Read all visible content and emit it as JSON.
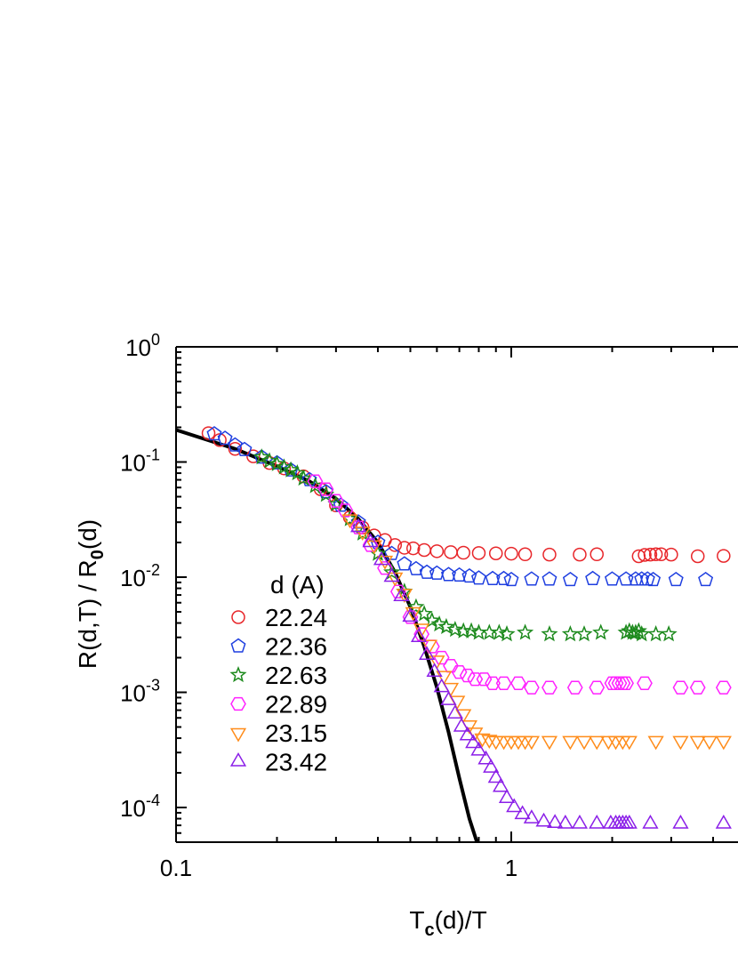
{
  "chart_data": {
    "type": "scatter",
    "x_scale": "log",
    "y_scale": "log",
    "xlim": [
      0.1,
      4.4
    ],
    "ylim": [
      5e-05,
      1
    ],
    "xlabel": {
      "base": "T",
      "sub": "c",
      "rest": "(d)/T"
    },
    "ylabel": {
      "part1": "R(d,T) / R",
      "sub": "0",
      "part2": "(d)"
    },
    "x_ticks": [
      {
        "value": 0.1,
        "label": "0.1"
      },
      {
        "value": 1,
        "label": "1"
      }
    ],
    "y_ticks": [
      {
        "value": 1,
        "base": "10",
        "exp": "0"
      },
      {
        "value": 0.1,
        "base": "10",
        "exp": "-1"
      },
      {
        "value": 0.01,
        "base": "10",
        "exp": "-2"
      },
      {
        "value": 0.001,
        "base": "10",
        "exp": "-3"
      },
      {
        "value": 0.0001,
        "base": "10",
        "exp": "-4"
      }
    ],
    "legend": {
      "title": "d (A)",
      "position": "left-center"
    },
    "series": [
      {
        "name": "22.24",
        "marker": "circle",
        "color": "#e8262a",
        "points": [
          [
            0.125,
            0.178
          ],
          [
            0.135,
            0.155
          ],
          [
            0.15,
            0.13
          ],
          [
            0.17,
            0.112
          ],
          [
            0.19,
            0.098
          ],
          [
            0.21,
            0.088
          ],
          [
            0.24,
            0.075
          ],
          [
            0.27,
            0.058
          ],
          [
            0.3,
            0.042
          ],
          [
            0.33,
            0.033
          ],
          [
            0.36,
            0.027
          ],
          [
            0.39,
            0.023
          ],
          [
            0.42,
            0.021
          ],
          [
            0.45,
            0.019
          ],
          [
            0.48,
            0.018
          ],
          [
            0.51,
            0.0178
          ],
          [
            0.55,
            0.0172
          ],
          [
            0.6,
            0.0168
          ],
          [
            0.66,
            0.0165
          ],
          [
            0.72,
            0.0163
          ],
          [
            0.8,
            0.0162
          ],
          [
            0.9,
            0.0161
          ],
          [
            1.0,
            0.016
          ],
          [
            1.1,
            0.0158
          ],
          [
            1.3,
            0.0157
          ],
          [
            1.6,
            0.0157
          ],
          [
            1.8,
            0.0158
          ],
          [
            2.4,
            0.0152
          ],
          [
            2.5,
            0.0156
          ],
          [
            2.6,
            0.0157
          ],
          [
            2.7,
            0.0158
          ],
          [
            2.8,
            0.0158
          ],
          [
            3.0,
            0.0157
          ],
          [
            3.6,
            0.0152
          ],
          [
            4.3,
            0.0153
          ]
        ]
      },
      {
        "name": "22.36",
        "marker": "pentagon",
        "color": "#1f3fe0",
        "points": [
          [
            0.13,
            0.175
          ],
          [
            0.14,
            0.16
          ],
          [
            0.15,
            0.14
          ],
          [
            0.16,
            0.128
          ],
          [
            0.18,
            0.11
          ],
          [
            0.2,
            0.098
          ],
          [
            0.22,
            0.085
          ],
          [
            0.25,
            0.07
          ],
          [
            0.28,
            0.055
          ],
          [
            0.31,
            0.042
          ],
          [
            0.35,
            0.03
          ],
          [
            0.4,
            0.02
          ],
          [
            0.44,
            0.016
          ],
          [
            0.48,
            0.013
          ],
          [
            0.52,
            0.0118
          ],
          [
            0.56,
            0.011
          ],
          [
            0.6,
            0.0108
          ],
          [
            0.65,
            0.0105
          ],
          [
            0.7,
            0.0104
          ],
          [
            0.75,
            0.0102
          ],
          [
            0.8,
            0.0098
          ],
          [
            0.88,
            0.0097
          ],
          [
            0.95,
            0.0097
          ],
          [
            1.0,
            0.0095
          ],
          [
            1.15,
            0.0096
          ],
          [
            1.3,
            0.0096
          ],
          [
            1.5,
            0.0095
          ],
          [
            1.75,
            0.0097
          ],
          [
            2.0,
            0.0096
          ],
          [
            2.2,
            0.0096
          ],
          [
            2.35,
            0.0096
          ],
          [
            2.45,
            0.0096
          ],
          [
            2.55,
            0.0096
          ],
          [
            2.65,
            0.0095
          ],
          [
            3.1,
            0.0095
          ],
          [
            3.8,
            0.0095
          ]
        ]
      },
      {
        "name": "22.63",
        "marker": "star",
        "color": "#1d8a1d",
        "points": [
          [
            0.18,
            0.11
          ],
          [
            0.19,
            0.102
          ],
          [
            0.2,
            0.096
          ],
          [
            0.21,
            0.09
          ],
          [
            0.22,
            0.085
          ],
          [
            0.23,
            0.08
          ],
          [
            0.24,
            0.072
          ],
          [
            0.26,
            0.062
          ],
          [
            0.28,
            0.052
          ],
          [
            0.3,
            0.043
          ],
          [
            0.33,
            0.032
          ],
          [
            0.36,
            0.024
          ],
          [
            0.4,
            0.016
          ],
          [
            0.44,
            0.011
          ],
          [
            0.48,
            0.0075
          ],
          [
            0.52,
            0.0055
          ],
          [
            0.55,
            0.0048
          ],
          [
            0.58,
            0.0042
          ],
          [
            0.61,
            0.0039
          ],
          [
            0.64,
            0.0037
          ],
          [
            0.68,
            0.0035
          ],
          [
            0.72,
            0.0034
          ],
          [
            0.76,
            0.0034
          ],
          [
            0.8,
            0.0033
          ],
          [
            0.86,
            0.0033
          ],
          [
            0.92,
            0.0033
          ],
          [
            0.97,
            0.0032
          ],
          [
            1.1,
            0.0033
          ],
          [
            1.3,
            0.0032
          ],
          [
            1.5,
            0.0032
          ],
          [
            1.65,
            0.0032
          ],
          [
            1.85,
            0.0033
          ],
          [
            2.2,
            0.0033
          ],
          [
            2.25,
            0.0034
          ],
          [
            2.3,
            0.0033
          ],
          [
            2.35,
            0.0033
          ],
          [
            2.4,
            0.0034
          ],
          [
            2.45,
            0.0032
          ],
          [
            2.7,
            0.0032
          ],
          [
            2.95,
            0.0032
          ]
        ]
      },
      {
        "name": "22.89",
        "marker": "hexagon",
        "color": "#ff22ff",
        "points": [
          [
            0.26,
            0.068
          ],
          [
            0.28,
            0.058
          ],
          [
            0.3,
            0.046
          ],
          [
            0.32,
            0.038
          ],
          [
            0.35,
            0.027
          ],
          [
            0.38,
            0.019
          ],
          [
            0.42,
            0.012
          ],
          [
            0.46,
            0.0075
          ],
          [
            0.5,
            0.0045
          ],
          [
            0.54,
            0.0032
          ],
          [
            0.58,
            0.0025
          ],
          [
            0.62,
            0.002
          ],
          [
            0.66,
            0.0017
          ],
          [
            0.7,
            0.0015
          ],
          [
            0.74,
            0.0014
          ],
          [
            0.78,
            0.0013
          ],
          [
            0.83,
            0.0013
          ],
          [
            0.88,
            0.0012
          ],
          [
            0.95,
            0.0012
          ],
          [
            1.05,
            0.0012
          ],
          [
            1.15,
            0.0011
          ],
          [
            1.3,
            0.0011
          ],
          [
            1.55,
            0.0011
          ],
          [
            1.8,
            0.0011
          ],
          [
            2.0,
            0.0012
          ],
          [
            2.05,
            0.0012
          ],
          [
            2.1,
            0.0012
          ],
          [
            2.15,
            0.0012
          ],
          [
            2.2,
            0.0012
          ],
          [
            2.5,
            0.0012
          ],
          [
            3.2,
            0.0011
          ],
          [
            3.6,
            0.0011
          ],
          [
            4.3,
            0.0011
          ]
        ]
      },
      {
        "name": "23.15",
        "marker": "triangle-down",
        "color": "#ff8c1a",
        "points": [
          [
            0.33,
            0.032
          ],
          [
            0.36,
            0.025
          ],
          [
            0.39,
            0.019
          ],
          [
            0.42,
            0.014
          ],
          [
            0.45,
            0.01
          ],
          [
            0.48,
            0.0072
          ],
          [
            0.51,
            0.005
          ],
          [
            0.54,
            0.0036
          ],
          [
            0.57,
            0.0026
          ],
          [
            0.6,
            0.0019
          ],
          [
            0.63,
            0.0014
          ],
          [
            0.66,
            0.0011
          ],
          [
            0.69,
            0.00085
          ],
          [
            0.72,
            0.00065
          ],
          [
            0.75,
            0.00052
          ],
          [
            0.78,
            0.00045
          ],
          [
            0.82,
            0.0004
          ],
          [
            0.86,
            0.00039
          ],
          [
            0.9,
            0.00038
          ],
          [
            0.95,
            0.00038
          ],
          [
            1.0,
            0.00038
          ],
          [
            1.05,
            0.00038
          ],
          [
            1.1,
            0.00038
          ],
          [
            1.15,
            0.00038
          ],
          [
            1.3,
            0.00038
          ],
          [
            1.5,
            0.00038
          ],
          [
            1.65,
            0.00038
          ],
          [
            1.8,
            0.00038
          ],
          [
            1.95,
            0.00038
          ],
          [
            2.05,
            0.00038
          ],
          [
            2.15,
            0.00038
          ],
          [
            2.25,
            0.00038
          ],
          [
            2.7,
            0.00038
          ],
          [
            3.2,
            0.00038
          ],
          [
            3.6,
            0.00038
          ],
          [
            3.9,
            0.00038
          ],
          [
            4.3,
            0.00038
          ]
        ]
      },
      {
        "name": "23.42",
        "marker": "triangle-up",
        "color": "#8b1fe8",
        "points": [
          [
            0.35,
            0.027
          ],
          [
            0.38,
            0.02
          ],
          [
            0.41,
            0.014
          ],
          [
            0.44,
            0.01
          ],
          [
            0.47,
            0.0068
          ],
          [
            0.5,
            0.0045
          ],
          [
            0.53,
            0.003
          ],
          [
            0.56,
            0.0021
          ],
          [
            0.59,
            0.0015
          ],
          [
            0.62,
            0.0011
          ],
          [
            0.65,
            0.00085
          ],
          [
            0.68,
            0.00065
          ],
          [
            0.71,
            0.0005
          ],
          [
            0.74,
            0.00042
          ],
          [
            0.77,
            0.00036
          ],
          [
            0.8,
            0.00031
          ],
          [
            0.84,
            0.00026
          ],
          [
            0.87,
            0.00022
          ],
          [
            0.9,
            0.00018
          ],
          [
            0.93,
            0.00015
          ],
          [
            0.97,
            0.00012
          ],
          [
            1.02,
            0.0001
          ],
          [
            1.08,
            8.7e-05
          ],
          [
            1.15,
            8e-05
          ],
          [
            1.25,
            7.5e-05
          ],
          [
            1.35,
            7.3e-05
          ],
          [
            1.45,
            7.2e-05
          ],
          [
            1.6,
            7.2e-05
          ],
          [
            1.8,
            7.2e-05
          ],
          [
            1.98,
            7.2e-05
          ],
          [
            2.05,
            7.2e-05
          ],
          [
            2.1,
            7.2e-05
          ],
          [
            2.15,
            7.2e-05
          ],
          [
            2.2,
            7.2e-05
          ],
          [
            2.25,
            7.2e-05
          ],
          [
            2.6,
            7.2e-05
          ],
          [
            3.2,
            7.2e-05
          ],
          [
            4.3,
            7.2e-05
          ]
        ]
      }
    ],
    "fit_curve": {
      "color": "#000000",
      "points": [
        [
          0.1,
          0.19
        ],
        [
          0.15,
          0.13
        ],
        [
          0.2,
          0.092
        ],
        [
          0.25,
          0.068
        ],
        [
          0.3,
          0.048
        ],
        [
          0.35,
          0.032
        ],
        [
          0.4,
          0.02
        ],
        [
          0.45,
          0.011
        ],
        [
          0.5,
          0.0055
        ],
        [
          0.55,
          0.0025
        ],
        [
          0.6,
          0.0011
        ],
        [
          0.65,
          0.00045
        ],
        [
          0.7,
          0.00018
        ],
        [
          0.75,
          8e-05
        ],
        [
          0.79,
          5e-05
        ]
      ]
    }
  }
}
